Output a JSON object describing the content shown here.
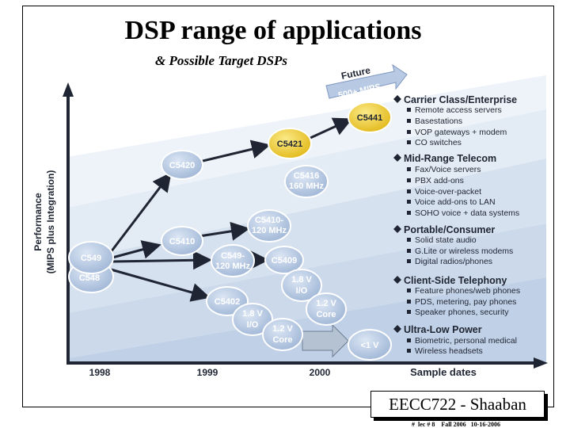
{
  "title": "DSP range of applications",
  "subtitle": "& Possible Target DSPs",
  "y_axis_line1": "Performance",
  "y_axis_line2": "(MIPS plus Integration)",
  "x_axis_label": "Sample dates",
  "years": [
    "1998",
    "1999",
    "2000"
  ],
  "future_label": "Future",
  "future_mips": "500+ MIPS",
  "nodes": {
    "c549": "C549",
    "c548": "C548",
    "c5420": "C5420",
    "c5410": "C5410",
    "c5402": "C5402",
    "c549_120_a": "C549-",
    "c549_120_b": "120 MHz",
    "c5421": "C5421",
    "c5416_a": "C5416",
    "c5416_b": "160 MHz",
    "c5410_120_a": "C5410-",
    "c5410_120_b": "120 MHz",
    "c5409": "C5409",
    "v18_a_1": "1.8 V",
    "v18_a_2": "I/O",
    "v18_b_1": "1.8 V",
    "v18_b_2": "I/O",
    "v12_a_1": "1.2 V",
    "v12_a_2": "Core",
    "v12_b_1": "1.2 V",
    "v12_b_2": "Core",
    "c5441": "C5441",
    "lt1v": "<1 V"
  },
  "categories": [
    {
      "heading": "Carrier Class/Enterprise",
      "items": [
        "Remote access servers",
        "Basestations",
        "VOP gateways + modem",
        "CO switches"
      ]
    },
    {
      "heading": "Mid-Range Telecom",
      "items": [
        "Fax/Voice servers",
        "PBX add-ons",
        "Voice-over-packet",
        "Voice add-ons to LAN",
        "SOHO voice + data systems"
      ]
    },
    {
      "heading": "Portable/Consumer",
      "items": [
        "Solid state audio",
        "G.Lite or wireless modems",
        "Digital radios/phones"
      ]
    },
    {
      "heading": "Client-Side Telephony",
      "items": [
        "Feature phones/web phones",
        "PDS, metering, pay phones",
        "Speaker phones, security"
      ]
    },
    {
      "heading": "Ultra-Low Power",
      "items": [
        "Biometric, personal medical",
        "Wireless headsets"
      ]
    }
  ],
  "footer": {
    "course": "EECC722 - Shaaban",
    "lec": "#  lec # 8    Fall 2006   10-16-2006"
  },
  "colors": {
    "node_blue": "#b5c8e3",
    "node_yellow": "#f0d232",
    "arrow_dark": "#1f2532",
    "band_light": "#e6edf6",
    "band_mid": "#cfdcec",
    "future_arrow": "#9fb4d6"
  }
}
